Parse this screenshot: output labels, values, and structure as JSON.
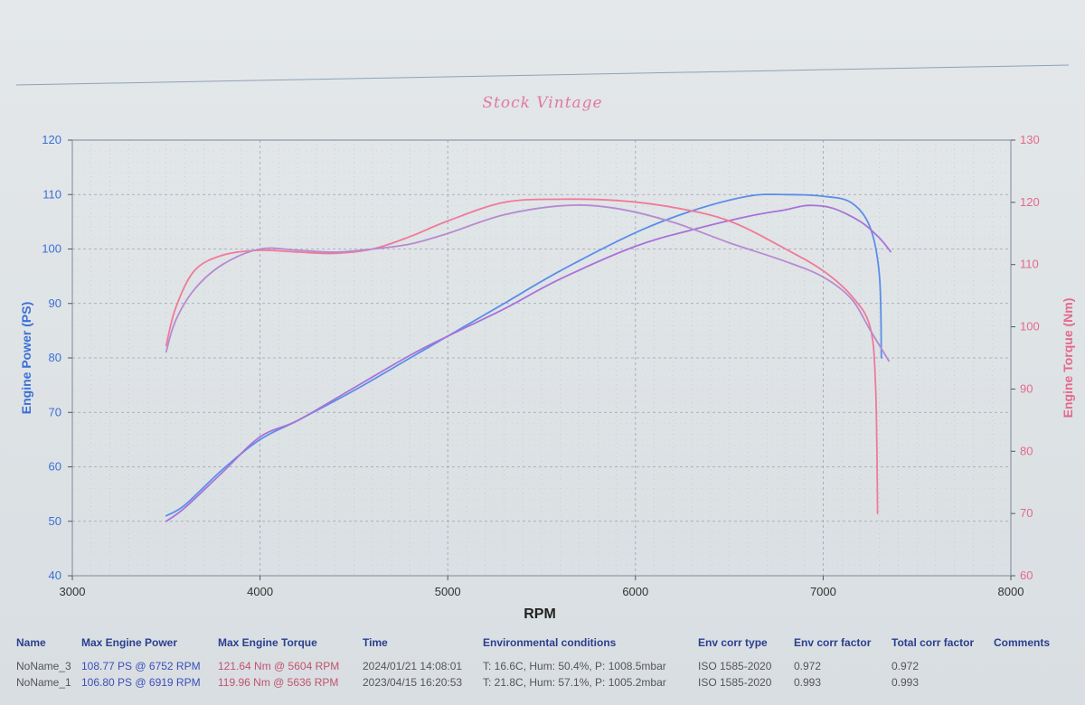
{
  "title": "Stock Vintage",
  "chart_data": {
    "type": "line",
    "title": "Stock Vintage",
    "xlabel": "RPM",
    "ylabel_left": "Engine Power (PS)",
    "ylabel_right": "Engine Torque (Nm)",
    "xlim": [
      3000,
      8000
    ],
    "ylim_left": [
      40,
      120
    ],
    "ylim_right": [
      60,
      130
    ],
    "x_ticks": [
      "3000",
      "4000",
      "5000",
      "6000",
      "7000",
      "8000"
    ],
    "y_left_ticks": [
      "40",
      "50",
      "60",
      "70",
      "80",
      "90",
      "100",
      "110",
      "120"
    ],
    "y_right_ticks": [
      "60",
      "70",
      "80",
      "90",
      "100",
      "110",
      "120",
      "130"
    ],
    "grid": true,
    "series": [
      {
        "name": "NoName_3",
        "quantity": "power",
        "axis": "left",
        "color": "#5b8ee8",
        "points": [
          [
            3500,
            51
          ],
          [
            3600,
            53
          ],
          [
            3800,
            59.5
          ],
          [
            4000,
            65
          ],
          [
            4200,
            68.5
          ],
          [
            4500,
            74
          ],
          [
            4800,
            80
          ],
          [
            5000,
            84
          ],
          [
            5300,
            90
          ],
          [
            5600,
            96
          ],
          [
            6000,
            103
          ],
          [
            6300,
            107
          ],
          [
            6600,
            109.7
          ],
          [
            6800,
            110
          ],
          [
            7000,
            109.7
          ],
          [
            7150,
            108.5
          ],
          [
            7250,
            104
          ],
          [
            7300,
            95
          ],
          [
            7310,
            80
          ]
        ]
      },
      {
        "name": "NoName_1",
        "quantity": "power",
        "axis": "left",
        "color": "#a872d8",
        "points": [
          [
            3500,
            50
          ],
          [
            3600,
            52.5
          ],
          [
            3800,
            59
          ],
          [
            4000,
            65.5
          ],
          [
            4200,
            68.5
          ],
          [
            4500,
            74.5
          ],
          [
            4800,
            80.5
          ],
          [
            5000,
            84
          ],
          [
            5300,
            89
          ],
          [
            5600,
            94.5
          ],
          [
            6000,
            100.5
          ],
          [
            6300,
            103.5
          ],
          [
            6600,
            106
          ],
          [
            6800,
            107.2
          ],
          [
            6919,
            108
          ],
          [
            7050,
            107.5
          ],
          [
            7200,
            105
          ],
          [
            7300,
            102
          ],
          [
            7360,
            99.5
          ]
        ]
      },
      {
        "name": "NoName_3",
        "quantity": "torque",
        "axis": "right",
        "color": "#f07a98",
        "points": [
          [
            3500,
            97
          ],
          [
            3550,
            103
          ],
          [
            3650,
            109
          ],
          [
            3800,
            111.5
          ],
          [
            4000,
            112.3
          ],
          [
            4200,
            112
          ],
          [
            4400,
            111.8
          ],
          [
            4600,
            112.5
          ],
          [
            4800,
            114.5
          ],
          [
            5000,
            117
          ],
          [
            5300,
            120
          ],
          [
            5604,
            120.5
          ],
          [
            5900,
            120.3
          ],
          [
            6200,
            119.2
          ],
          [
            6500,
            117
          ],
          [
            6800,
            112.5
          ],
          [
            7000,
            109
          ],
          [
            7150,
            105
          ],
          [
            7250,
            100
          ],
          [
            7280,
            90
          ],
          [
            7290,
            70
          ]
        ]
      },
      {
        "name": "NoName_1",
        "quantity": "torque",
        "axis": "right",
        "color": "#b78ad0",
        "points": [
          [
            3500,
            96
          ],
          [
            3550,
            101
          ],
          [
            3650,
            106
          ],
          [
            3800,
            110
          ],
          [
            4000,
            112.5
          ],
          [
            4200,
            112.3
          ],
          [
            4400,
            112
          ],
          [
            4600,
            112.5
          ],
          [
            4800,
            113.3
          ],
          [
            5000,
            115
          ],
          [
            5300,
            118
          ],
          [
            5636,
            119.5
          ],
          [
            5900,
            119
          ],
          [
            6200,
            116.8
          ],
          [
            6500,
            113.5
          ],
          [
            6800,
            110.5
          ],
          [
            7000,
            108
          ],
          [
            7150,
            104.5
          ],
          [
            7250,
            99.5
          ],
          [
            7350,
            94.5
          ]
        ]
      }
    ],
    "table": {
      "headers": [
        "Name",
        "Max Engine Power",
        "Max Engine Torque",
        "Time",
        "Environmental conditions",
        "Env corr type",
        "Env corr factor",
        "Total corr factor",
        "Comments"
      ],
      "rows": [
        {
          "name": "NoName_3",
          "power": "108.77 PS @ 6752 RPM",
          "torque": "121.64 Nm @ 5604 RPM",
          "time": "2024/01/21 14:08:01",
          "env": "T: 16.6C, Hum: 50.4%, P: 1008.5mbar",
          "corr_type": "ISO 1585-2020",
          "corr_factor": "0.972",
          "total_corr": "0.972",
          "comments": ""
        },
        {
          "name": "NoName_1",
          "power": "106.80 PS @ 6919 RPM",
          "torque": "119.96 Nm @ 5636 RPM",
          "time": "2023/04/15 16:20:53",
          "env": "T: 21.8C, Hum: 57.1%, P: 1005.2mbar",
          "corr_type": "ISO 1585-2020",
          "corr_factor": "0.993",
          "total_corr": "0.993",
          "comments": ""
        }
      ]
    }
  }
}
